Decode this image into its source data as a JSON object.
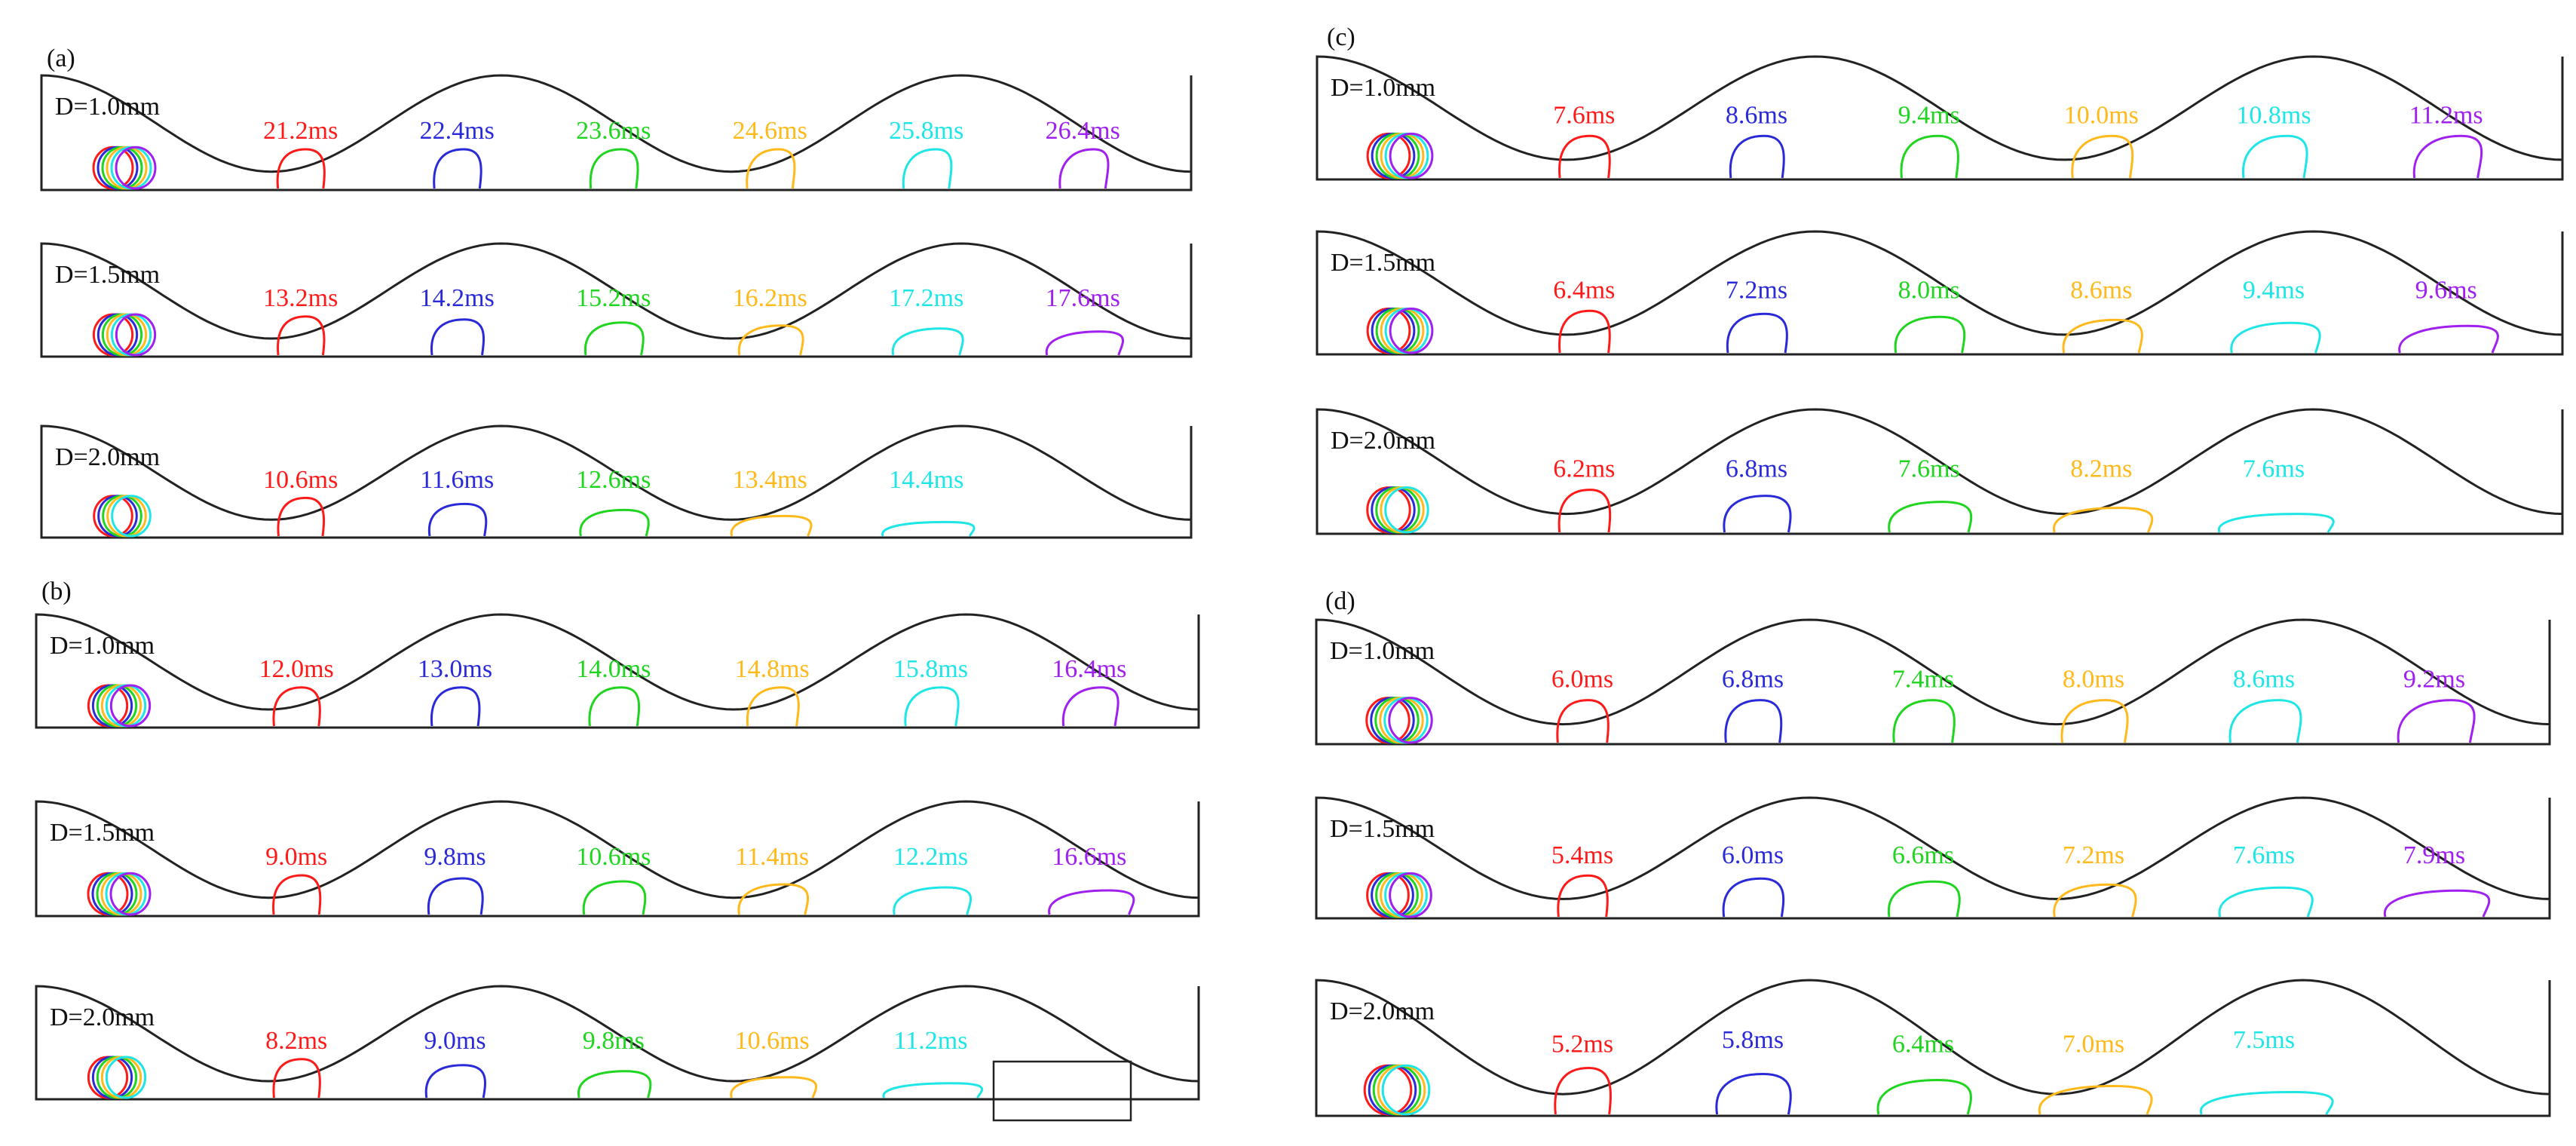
{
  "colors": [
    "#ff1a1a",
    "#2a2ad8",
    "#1fd51f",
    "#ffb91a",
    "#1fe6e6",
    "#a020f0"
  ],
  "groups": [
    {
      "label": "(a)",
      "panels": [
        {
          "d_label": "D=1.0mm",
          "times": [
            "21.2ms",
            "22.4ms",
            "23.6ms",
            "24.6ms",
            "25.8ms",
            "26.4ms"
          ]
        },
        {
          "d_label": "D=1.5mm",
          "times": [
            "13.2ms",
            "14.2ms",
            "15.2ms",
            "16.2ms",
            "17.2ms",
            "17.6ms"
          ]
        },
        {
          "d_label": "D=2.0mm",
          "times": [
            "10.6ms",
            "11.6ms",
            "12.6ms",
            "13.4ms",
            "14.4ms"
          ]
        }
      ]
    },
    {
      "label": "(b)",
      "panels": [
        {
          "d_label": "D=1.0mm",
          "times": [
            "12.0ms",
            "13.0ms",
            "14.0ms",
            "14.8ms",
            "15.8ms",
            "16.4ms"
          ]
        },
        {
          "d_label": "D=1.5mm",
          "times": [
            "9.0ms",
            "9.8ms",
            "10.6ms",
            "11.4ms",
            "12.2ms",
            "16.6ms"
          ]
        },
        {
          "d_label": "D=2.0mm",
          "times": [
            "8.2ms",
            "9.0ms",
            "9.8ms",
            "10.6ms",
            "11.2ms"
          ]
        }
      ]
    },
    {
      "label": "(c)",
      "panels": [
        {
          "d_label": "D=1.0mm",
          "times": [
            "7.6ms",
            "8.6ms",
            "9.4ms",
            "10.0ms",
            "10.8ms",
            "11.2ms"
          ]
        },
        {
          "d_label": "D=1.5mm",
          "times": [
            "6.4ms",
            "7.2ms",
            "8.0ms",
            "8.6ms",
            "9.4ms",
            "9.6ms"
          ]
        },
        {
          "d_label": "D=2.0mm",
          "times": [
            "6.2ms",
            "6.8ms",
            "7.6ms",
            "8.2ms",
            "7.6ms"
          ]
        }
      ]
    },
    {
      "label": "(d)",
      "panels": [
        {
          "d_label": "D=1.0mm",
          "times": [
            "6.0ms",
            "6.8ms",
            "7.4ms",
            "8.0ms",
            "8.6ms",
            "9.2ms"
          ]
        },
        {
          "d_label": "D=1.5mm",
          "times": [
            "5.4ms",
            "6.0ms",
            "6.6ms",
            "7.2ms",
            "7.6ms",
            "7.9ms"
          ]
        },
        {
          "d_label": "D=2.0mm",
          "times": [
            "5.2ms",
            "5.8ms",
            "6.4ms",
            "7.0ms",
            "7.5ms"
          ]
        }
      ]
    }
  ]
}
